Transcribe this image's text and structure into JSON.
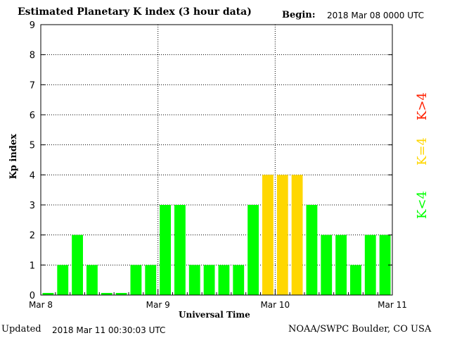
{
  "header": {
    "title": "Estimated Planetary K index (3 hour data)",
    "begin_label": "Begin:",
    "begin_value": "2018 Mar 08 0000 UTC"
  },
  "footer": {
    "updated_label": "Updated",
    "updated_value": "2018 Mar 11 00:30:03 UTC",
    "credit": "NOAA/SWPC Boulder, CO USA"
  },
  "legend": {
    "high": "K>4",
    "equal": "K=4",
    "low": "K<4"
  },
  "colors": {
    "low": "#00ff00",
    "equal": "#ffd700",
    "high": "#ff2000",
    "axis": "#000000"
  },
  "chart_data": {
    "type": "bar",
    "title": "Estimated Planetary K index (3 hour data)",
    "xlabel": "Universal Time",
    "ylabel": "Kp index",
    "ylim": [
      0,
      9
    ],
    "yticks": [
      0,
      1,
      2,
      3,
      4,
      5,
      6,
      7,
      8,
      9
    ],
    "xticks": [
      "Mar 8",
      "Mar 9",
      "Mar 10",
      "Mar 11"
    ],
    "grid": "dotted vertical at day boundaries, dotted horizontal at each integer",
    "interval_hours": 3,
    "values": [
      0,
      1,
      2,
      1,
      0,
      0,
      1,
      1,
      3,
      3,
      1,
      1,
      1,
      1,
      3,
      4,
      4,
      4,
      3,
      2,
      2,
      1,
      2,
      2
    ]
  }
}
